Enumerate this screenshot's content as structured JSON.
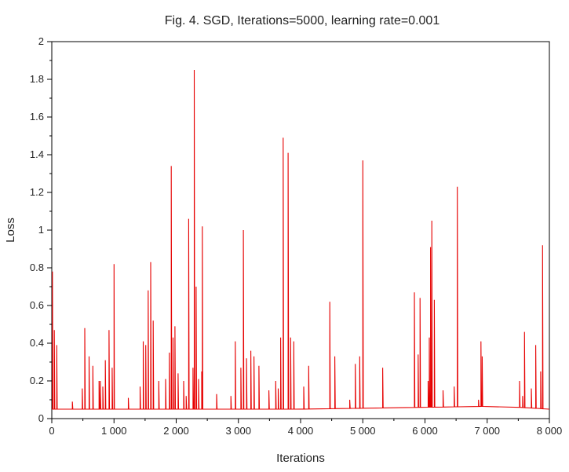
{
  "chart_data": {
    "type": "line",
    "title": "Fig. 4. SGD, Iterations=5000, learning rate=0.001",
    "xlabel": "Iterations",
    "ylabel": "Loss",
    "xlim": [
      0,
      8000
    ],
    "ylim": [
      0,
      2
    ],
    "grid": false,
    "legend": "none",
    "x_ticks": [
      0,
      1000,
      2000,
      3000,
      4000,
      5000,
      6000,
      7000,
      8000
    ],
    "x_tick_labels": [
      "0",
      "1 000",
      "2 000",
      "3 000",
      "4 000",
      "5 000",
      "6 000",
      "7 000",
      "8 000"
    ],
    "y_ticks": [
      0,
      0.2,
      0.4,
      0.6,
      0.8,
      1,
      1.2,
      1.4,
      1.6,
      1.8,
      2
    ],
    "y_tick_labels": [
      "0",
      "0.2",
      "0.4",
      "0.6",
      "0.8",
      "1",
      "1.2",
      "1.4",
      "1.6",
      "1.8",
      "2"
    ],
    "line_color": "#e60000",
    "baseline": [
      [
        0,
        0.05
      ],
      [
        1000,
        0.05
      ],
      [
        2000,
        0.05
      ],
      [
        3000,
        0.05
      ],
      [
        4000,
        0.05
      ],
      [
        5000,
        0.055
      ],
      [
        6000,
        0.06
      ],
      [
        7000,
        0.065
      ],
      [
        7500,
        0.06
      ],
      [
        8000,
        0.05
      ]
    ],
    "spikes": [
      [
        10,
        0.78
      ],
      [
        40,
        0.47
      ],
      [
        80,
        0.39
      ],
      [
        330,
        0.09
      ],
      [
        490,
        0.16
      ],
      [
        530,
        0.48
      ],
      [
        600,
        0.33
      ],
      [
        660,
        0.28
      ],
      [
        760,
        0.2
      ],
      [
        780,
        0.2
      ],
      [
        820,
        0.17
      ],
      [
        860,
        0.31
      ],
      [
        920,
        0.47
      ],
      [
        970,
        0.27
      ],
      [
        1000,
        0.82
      ],
      [
        1230,
        0.11
      ],
      [
        1420,
        0.17
      ],
      [
        1470,
        0.41
      ],
      [
        1510,
        0.39
      ],
      [
        1550,
        0.68
      ],
      [
        1590,
        0.83
      ],
      [
        1630,
        0.52
      ],
      [
        1720,
        0.2
      ],
      [
        1830,
        0.21
      ],
      [
        1890,
        0.35
      ],
      [
        1920,
        1.34
      ],
      [
        1950,
        0.43
      ],
      [
        1980,
        0.49
      ],
      [
        2030,
        0.24
      ],
      [
        2120,
        0.2
      ],
      [
        2160,
        0.12
      ],
      [
        2200,
        1.06
      ],
      [
        2270,
        0.27
      ],
      [
        2290,
        1.85
      ],
      [
        2320,
        0.7
      ],
      [
        2360,
        0.21
      ],
      [
        2410,
        0.25
      ],
      [
        2420,
        1.02
      ],
      [
        2650,
        0.13
      ],
      [
        2880,
        0.12
      ],
      [
        2950,
        0.41
      ],
      [
        3040,
        0.27
      ],
      [
        3080,
        1.0
      ],
      [
        3130,
        0.32
      ],
      [
        3200,
        0.36
      ],
      [
        3250,
        0.33
      ],
      [
        3330,
        0.28
      ],
      [
        3490,
        0.15
      ],
      [
        3600,
        0.2
      ],
      [
        3640,
        0.16
      ],
      [
        3680,
        0.43
      ],
      [
        3720,
        1.49
      ],
      [
        3800,
        1.41
      ],
      [
        3840,
        0.43
      ],
      [
        3890,
        0.41
      ],
      [
        4050,
        0.17
      ],
      [
        4130,
        0.28
      ],
      [
        4470,
        0.62
      ],
      [
        4550,
        0.33
      ],
      [
        4790,
        0.1
      ],
      [
        4880,
        0.29
      ],
      [
        4950,
        0.33
      ],
      [
        5000,
        1.37
      ],
      [
        5320,
        0.27
      ],
      [
        5830,
        0.67
      ],
      [
        5890,
        0.34
      ],
      [
        5920,
        0.64
      ],
      [
        6050,
        0.2
      ],
      [
        6070,
        0.43
      ],
      [
        6090,
        0.91
      ],
      [
        6110,
        1.05
      ],
      [
        6150,
        0.63
      ],
      [
        6290,
        0.15
      ],
      [
        6470,
        0.17
      ],
      [
        6520,
        1.23
      ],
      [
        6860,
        0.1
      ],
      [
        6900,
        0.41
      ],
      [
        6920,
        0.33
      ],
      [
        7520,
        0.2
      ],
      [
        7570,
        0.12
      ],
      [
        7600,
        0.46
      ],
      [
        7710,
        0.16
      ],
      [
        7780,
        0.39
      ],
      [
        7860,
        0.25
      ],
      [
        7890,
        0.92
      ]
    ]
  }
}
